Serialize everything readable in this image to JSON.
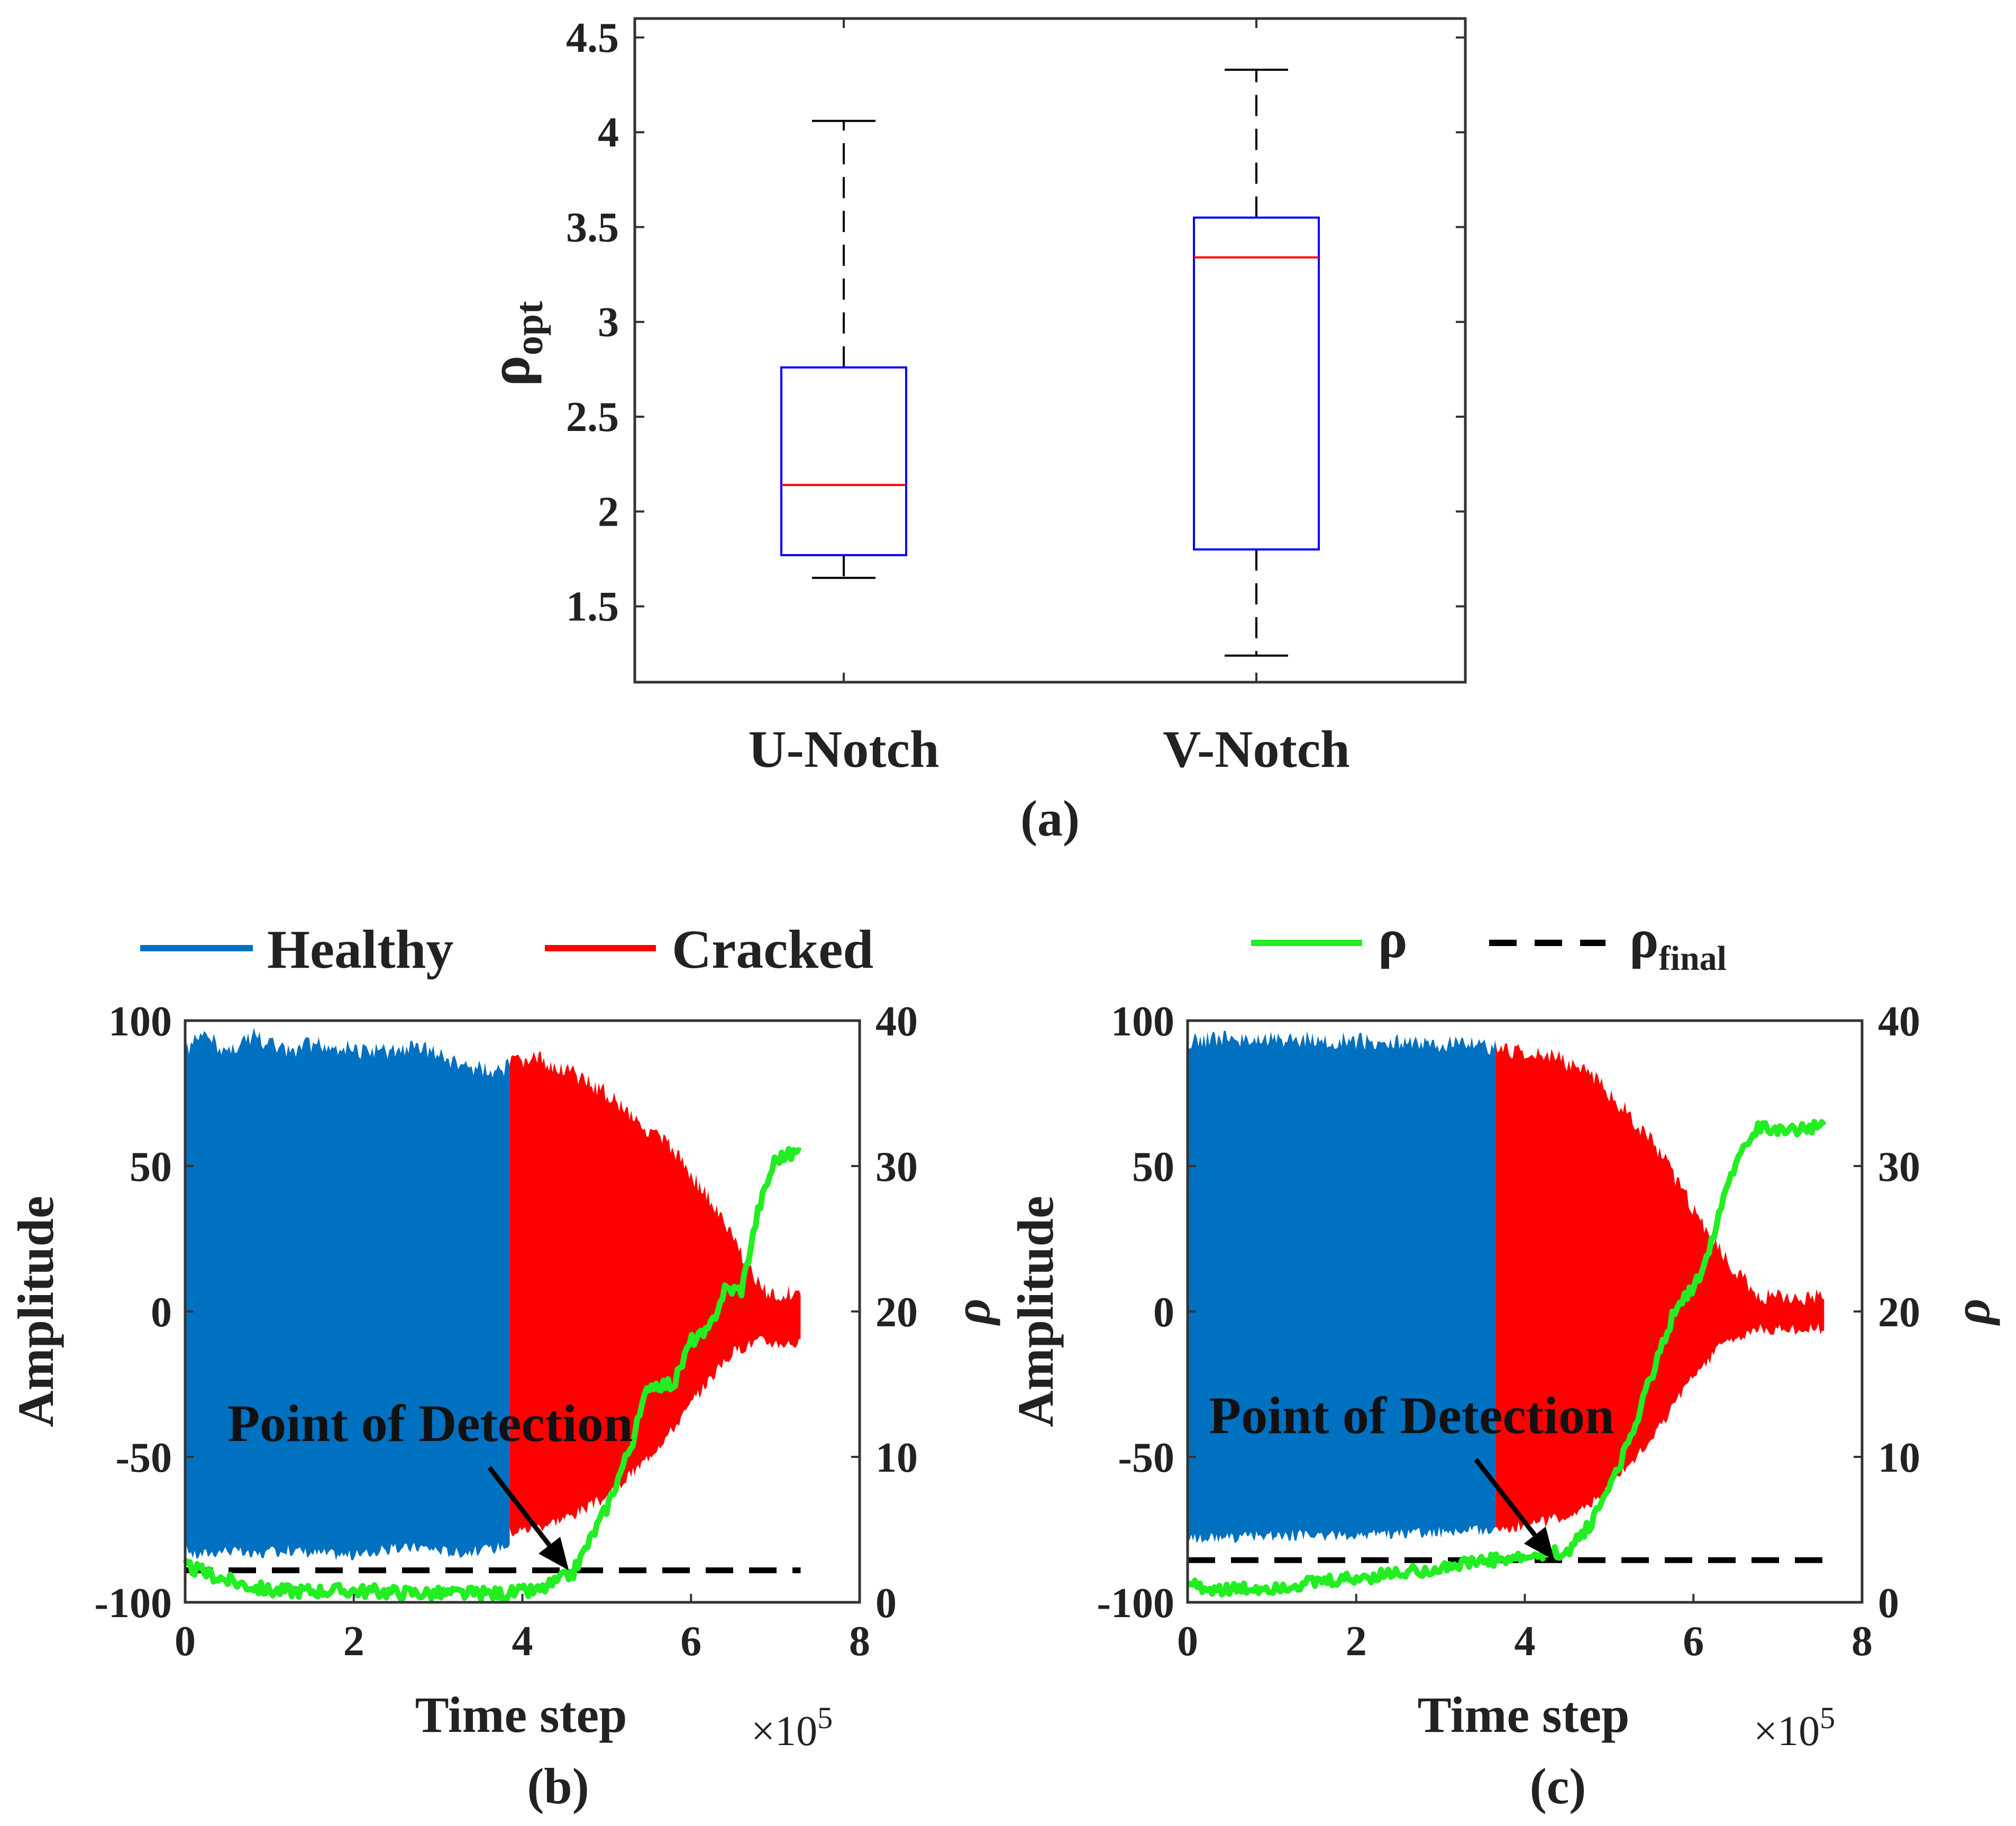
{
  "colors": {
    "healthy": "#0070c0",
    "cracked": "#ff0000",
    "rho": "#22ee22",
    "rho_final": "#000000",
    "box": "#0000ff",
    "median": "#ff0000",
    "whisker": "#000000"
  },
  "chart_data": [
    {
      "id": "a",
      "type": "box",
      "caption": "(a)",
      "ylabel": "ρ",
      "ylabel_sub": "opt",
      "xlabel": "",
      "ylim": [
        1.1,
        4.6
      ],
      "yticks": [
        1.5,
        2,
        2.5,
        3,
        3.5,
        4,
        4.5
      ],
      "ytick_labels": [
        "1.5",
        "2",
        "2.5",
        "3",
        "3.5",
        "4",
        "4.5"
      ],
      "categories": [
        "U-Notch",
        "V-Notch"
      ],
      "boxes": [
        {
          "min": 1.65,
          "q1": 1.77,
          "median": 2.14,
          "q3": 2.76,
          "max": 4.06
        },
        {
          "min": 1.24,
          "q1": 1.8,
          "median": 3.34,
          "q3": 3.55,
          "max": 4.33
        }
      ]
    },
    {
      "id": "b",
      "type": "line",
      "caption": "(b)",
      "xlabel": "Time step",
      "x_multiplier": "×10",
      "x_multiplier_exp": "5",
      "ylabel_left": "Amplitude",
      "ylabel_right": "ρ",
      "xlim": [
        0,
        8
      ],
      "ylim_left": [
        -100,
        100
      ],
      "ylim_right": [
        0,
        40
      ],
      "xticks": [
        "0",
        "2",
        "4",
        "6",
        "8"
      ],
      "yticks_left": [
        "-100",
        "-50",
        "0",
        "50",
        "100"
      ],
      "yticks_right": [
        "0",
        "10",
        "20",
        "30",
        "40"
      ],
      "legend": [
        "Healthy",
        "Cracked"
      ],
      "healthy_end": 3.85,
      "cracked_end": 7.3,
      "healthy_envelope": {
        "x": [
          0,
          0.1,
          0.3,
          0.5,
          0.8,
          1.2,
          1.5,
          2.0,
          2.4,
          2.8,
          3.2,
          3.6,
          3.85
        ],
        "upper": [
          92,
          96,
          97,
          92,
          98,
          92,
          95,
          93,
          92,
          94,
          88,
          86,
          87
        ],
        "lower": [
          -82,
          -86,
          -85,
          -84,
          -86,
          -84,
          -85,
          -86,
          -84,
          -83,
          -85,
          -84,
          -82
        ]
      },
      "cracked_envelope": {
        "x": [
          3.85,
          4.2,
          4.6,
          5.0,
          5.4,
          5.8,
          6.2,
          6.5,
          6.8,
          7.0,
          7.3
        ],
        "upper": [
          88,
          90,
          85,
          78,
          68,
          58,
          42,
          28,
          12,
          8,
          10
        ],
        "lower": [
          -78,
          -76,
          -72,
          -66,
          -55,
          -42,
          -26,
          -16,
          -12,
          -13,
          -13
        ]
      },
      "rho": {
        "x": [
          0,
          0.5,
          1.0,
          2.0,
          3.0,
          3.8,
          4.2,
          4.6,
          5.0,
          5.3,
          5.5,
          5.8,
          6.0,
          6.2,
          6.4,
          6.6,
          6.8,
          7.0,
          7.3
        ],
        "y": [
          2.5,
          1.5,
          0.8,
          0.8,
          0.6,
          0.6,
          0.8,
          2.0,
          6.5,
          11.0,
          15.0,
          15.0,
          18.0,
          18.5,
          21.5,
          21.5,
          27.0,
          30.5,
          31.0
        ]
      },
      "rho_final": 2.2,
      "annotation": "Point of Detection",
      "annotation_target": {
        "x": 4.55,
        "y": 2.2
      }
    },
    {
      "id": "c",
      "type": "line",
      "caption": "(c)",
      "xlabel": "Time step",
      "x_multiplier": "×10",
      "x_multiplier_exp": "5",
      "ylabel_left": "Amplitude",
      "ylabel_right": "ρ",
      "xlim": [
        0,
        8
      ],
      "ylim_left": [
        -100,
        100
      ],
      "ylim_right": [
        0,
        40
      ],
      "xticks": [
        "0",
        "2",
        "4",
        "6",
        "8"
      ],
      "yticks_left": [
        "-100",
        "-50",
        "0",
        "50",
        "100"
      ],
      "yticks_right": [
        "0",
        "10",
        "20",
        "30",
        "40"
      ],
      "legend": [
        "ρ",
        "ρ"
      ],
      "legend_sub": "final",
      "healthy_end": 3.65,
      "cracked_end": 7.55,
      "healthy_envelope": {
        "x": [
          0,
          0.5,
          1.0,
          2.0,
          3.0,
          3.65
        ],
        "upper": [
          96,
          97,
          97,
          96,
          95,
          94
        ],
        "lower": [
          -80,
          -80,
          -79,
          -79,
          -78,
          -77
        ]
      },
      "cracked_envelope": {
        "x": [
          3.65,
          4.0,
          4.4,
          4.8,
          5.2,
          5.6,
          6.0,
          6.4,
          6.8,
          7.2,
          7.55
        ],
        "upper": [
          94,
          92,
          90,
          84,
          72,
          58,
          38,
          20,
          8,
          8,
          8
        ],
        "lower": [
          -77,
          -76,
          -73,
          -68,
          -56,
          -42,
          -24,
          -12,
          -8,
          -8,
          -8
        ]
      },
      "rho": {
        "x": [
          0,
          0.5,
          1.0,
          1.5,
          2.0,
          2.5,
          3.0,
          3.5,
          4.0,
          4.5,
          4.8,
          5.2,
          5.5,
          5.8,
          6.0,
          6.2,
          6.4,
          6.7,
          7.0,
          7.55
        ],
        "y": [
          1.2,
          0.8,
          1.0,
          1.3,
          1.6,
          2.0,
          2.4,
          2.8,
          3.0,
          3.5,
          5.5,
          10.5,
          15.5,
          20.5,
          21.5,
          24.5,
          29.0,
          32.5,
          32.6,
          32.6
        ]
      },
      "rho_final": 2.9,
      "annotation": "Point of Detection",
      "annotation_target": {
        "x": 4.35,
        "y": 2.9
      }
    }
  ]
}
